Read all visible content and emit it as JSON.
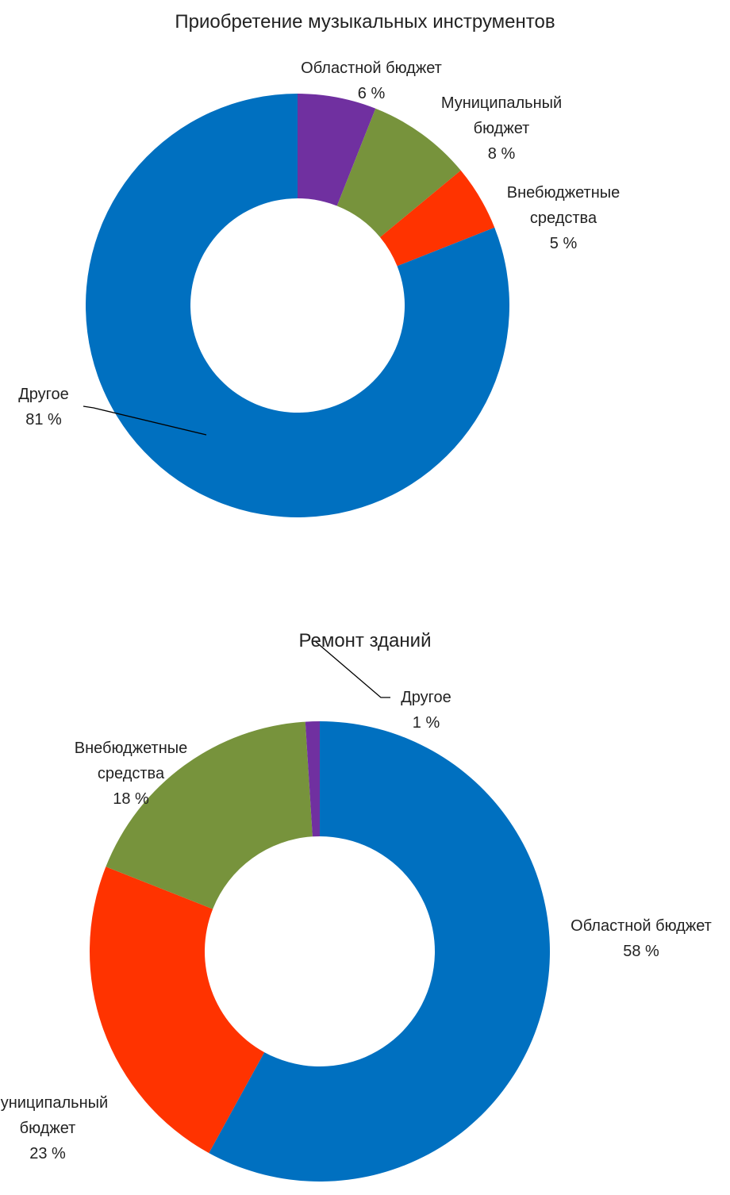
{
  "chart_data": [
    {
      "type": "donut",
      "title": "Приобретение музыкальных инструментов",
      "categories": [
        "Областной бюджет",
        "Муниципальный бюджет",
        "Внебюджетные средства",
        "Другое"
      ],
      "values": [
        6,
        8,
        5,
        81
      ],
      "value_labels": [
        "6 %",
        "8 %",
        "5 %",
        "81 %"
      ],
      "colors": [
        "#7030a0",
        "#77933c",
        "#ff3300",
        "#0070c0"
      ]
    },
    {
      "type": "donut",
      "title": "Ремонт зданий",
      "categories": [
        "Областной бюджет",
        "Муниципальный бюджет",
        "Внебюджетные средства",
        "Другое"
      ],
      "values": [
        58,
        23,
        18,
        1
      ],
      "value_labels": [
        "58 %",
        "23 %",
        "18 %",
        "1 %"
      ],
      "colors": [
        "#0070c0",
        "#ff3300",
        "#77933c",
        "#7030a0"
      ]
    }
  ]
}
